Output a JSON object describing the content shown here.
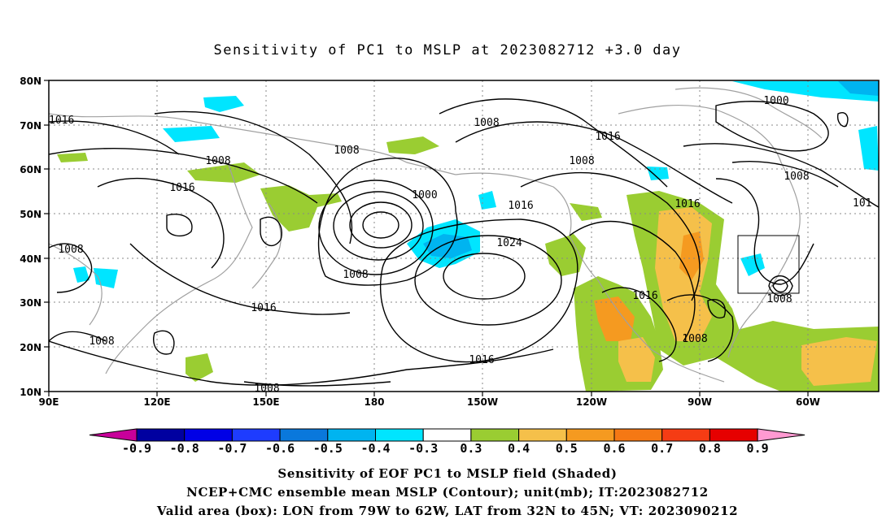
{
  "title": "Sensitivity of PC1 to MSLP at 2023082712 +3.0 day",
  "map": {
    "lon_labels": [
      "90E",
      "120E",
      "150E",
      "180",
      "150W",
      "120W",
      "90W",
      "60W"
    ],
    "lat_labels": [
      "80N",
      "70N",
      "60N",
      "50N",
      "40N",
      "30N",
      "20N",
      "10N"
    ],
    "contour_labels": [
      "1016",
      "1008",
      "1016",
      "1016",
      "1008",
      "1008",
      "1000",
      "1008",
      "1016",
      "1024",
      "1008",
      "1016",
      "1016",
      "1008",
      "1008",
      "1016",
      "1000",
      "1008",
      "1008",
      "1008",
      "101"
    ],
    "box_label_lon": "79W to 62W",
    "colors": {
      "neg_light": "#00e5ff",
      "neg_mid": "#00b4f0",
      "pos_green": "#9acd32",
      "pos_yellow": "#f5c04a",
      "pos_orange": "#f59a20",
      "coast": "#a0a0a0",
      "contour": "#000000"
    }
  },
  "colorbar": {
    "labels": [
      "-0.9",
      "-0.8",
      "-0.7",
      "-0.6",
      "-0.5",
      "-0.4",
      "-0.3",
      "0.3",
      "0.4",
      "0.5",
      "0.6",
      "0.7",
      "0.8",
      "0.9"
    ],
    "colors": [
      "#0000a0",
      "#0000e6",
      "#1e3cff",
      "#0a78dc",
      "#00b4f0",
      "#00e5ff",
      "#ffffff",
      "#9acd32",
      "#f5c04a",
      "#f59a20",
      "#f57814",
      "#f53c14",
      "#e60000"
    ],
    "low_tip": "#c8009a",
    "high_tip": "#ff9ad2"
  },
  "footer": {
    "line1": "Sensitivity of EOF PC1 to MSLP field (Shaded)",
    "line2": "NCEP+CMC ensemble mean MSLP (Contour); unit(mb); IT:2023082712",
    "line3": "Valid area (box): LON from 79W to 62W, LAT from 32N to 45N; VT: 2023090212"
  }
}
